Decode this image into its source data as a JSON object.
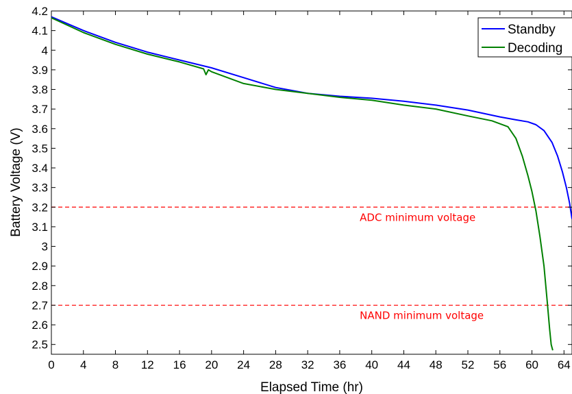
{
  "chart_data": {
    "type": "line",
    "title": "",
    "xlabel": "Elapsed Time (hr)",
    "ylabel": "Battery Voltage (V)",
    "xlim": [
      0,
      65
    ],
    "ylim": [
      2.45,
      4.2
    ],
    "xticks": [
      0,
      4,
      8,
      12,
      16,
      20,
      24,
      28,
      32,
      36,
      40,
      44,
      48,
      52,
      56,
      60,
      64
    ],
    "yticks": [
      2.5,
      2.6,
      2.7,
      2.8,
      2.9,
      3,
      3.1,
      3.2,
      3.3,
      3.4,
      3.5,
      3.6,
      3.7,
      3.8,
      3.9,
      4,
      4.1,
      4.2
    ],
    "grid": false,
    "legend_position": "top-right",
    "series": [
      {
        "name": "Standby",
        "color": "#0000ff",
        "x": [
          0,
          4,
          8,
          12,
          16,
          20,
          24,
          28,
          32,
          36,
          40,
          44,
          48,
          52,
          56,
          58,
          59.5,
          60.5,
          61.5,
          62.5,
          63.2,
          63.8,
          64.3,
          64.7,
          65
        ],
        "y": [
          4.17,
          4.1,
          4.04,
          3.99,
          3.95,
          3.91,
          3.86,
          3.81,
          3.78,
          3.765,
          3.755,
          3.74,
          3.72,
          3.695,
          3.66,
          3.645,
          3.635,
          3.62,
          3.59,
          3.53,
          3.46,
          3.38,
          3.3,
          3.22,
          3.14
        ]
      },
      {
        "name": "Decoding",
        "color": "#008000",
        "x": [
          0,
          4,
          8,
          12,
          16,
          19,
          19.3,
          19.6,
          20,
          22,
          24,
          28,
          32,
          36,
          40,
          44,
          48,
          52,
          55,
          57,
          58,
          58.8,
          59.5,
          60,
          60.5,
          61,
          61.5,
          61.9,
          62.2,
          62.4,
          62.6
        ],
        "y": [
          4.165,
          4.09,
          4.03,
          3.98,
          3.94,
          3.905,
          3.875,
          3.9,
          3.89,
          3.86,
          3.83,
          3.8,
          3.78,
          3.76,
          3.745,
          3.72,
          3.7,
          3.665,
          3.64,
          3.61,
          3.55,
          3.46,
          3.36,
          3.28,
          3.18,
          3.05,
          2.9,
          2.72,
          2.58,
          2.5,
          2.47
        ]
      }
    ],
    "annotations": [
      {
        "label": "ADC minimum voltage",
        "y": 3.2,
        "x": 38.5,
        "color": "#ff0000"
      },
      {
        "label": "NAND minimum voltage",
        "y": 2.7,
        "x": 38.5,
        "color": "#ff0000"
      }
    ]
  }
}
